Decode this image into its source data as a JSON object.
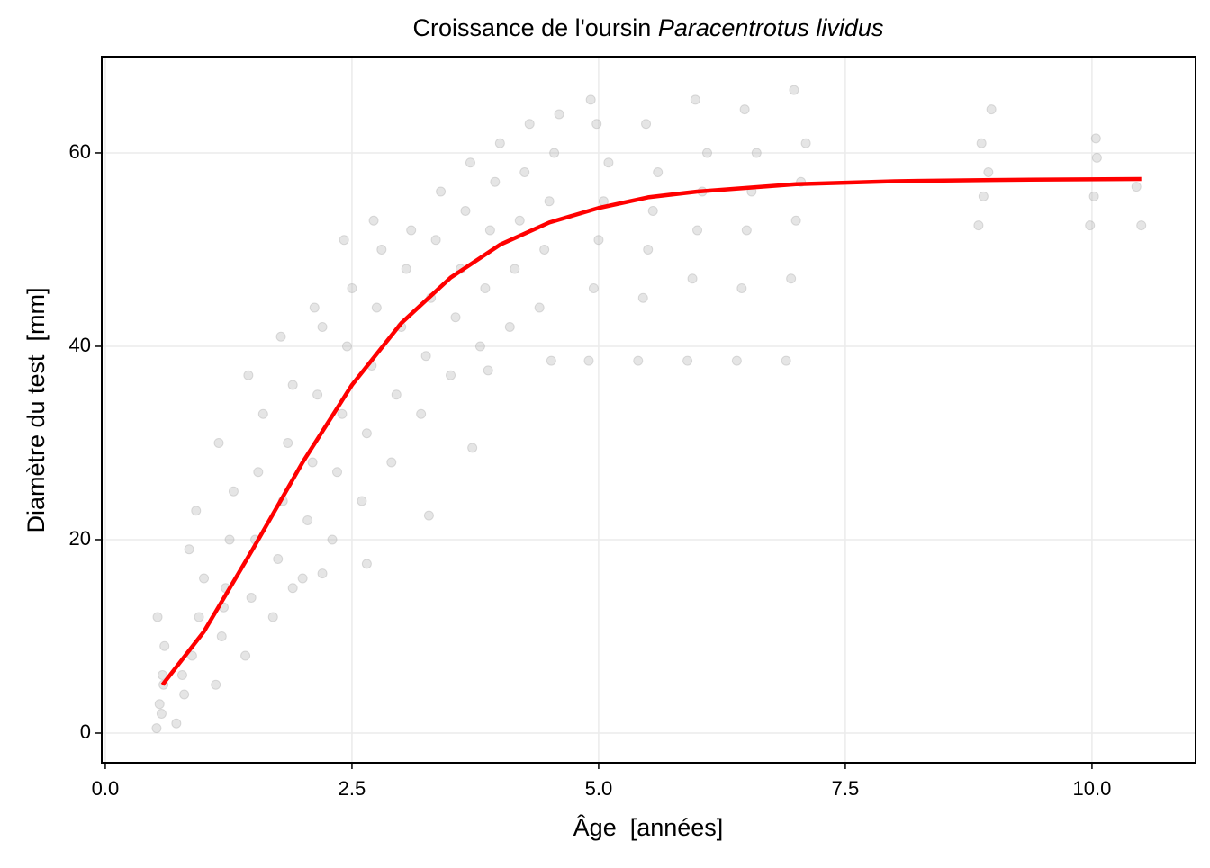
{
  "chart_data": {
    "type": "scatter",
    "title": "Croissance de l'oursin ",
    "title_italic": "Paracentrotus lividus",
    "x_label": "Âge  [années]",
    "y_label": "Diamètre du test  [mm]",
    "xlim": [
      -0.036,
      11.05
    ],
    "ylim": [
      -3.07,
      69.95
    ],
    "xticks": [
      {
        "value": 0,
        "label": "0.0"
      },
      2.5,
      {
        "value": 5,
        "label": "5.0"
      },
      7.5,
      {
        "value": 10,
        "label": "10.0"
      }
    ],
    "yticks": [
      0,
      20,
      40,
      60
    ],
    "grid": true,
    "series": [
      {
        "type": "scatter",
        "color": "#aaaaaa",
        "x": [
          0.52,
          0.55,
          0.58,
          0.6,
          0.53,
          0.57,
          0.59,
          0.72,
          0.8,
          0.88,
          0.95,
          1.0,
          0.85,
          0.92,
          0.78,
          1.12,
          1.18,
          1.22,
          1.26,
          1.3,
          1.15,
          1.2,
          1.42,
          1.48,
          1.52,
          1.55,
          1.6,
          1.45,
          1.7,
          1.75,
          1.8,
          1.85,
          1.9,
          1.78,
          2.0,
          2.05,
          2.1,
          2.15,
          2.2,
          2.12,
          2.3,
          2.35,
          2.4,
          2.45,
          2.5,
          2.42,
          2.6,
          2.65,
          2.7,
          2.75,
          2.8,
          2.72,
          2.9,
          2.95,
          3.0,
          3.05,
          3.1,
          3.2,
          3.25,
          3.3,
          3.35,
          3.4,
          3.28,
          3.5,
          3.55,
          3.6,
          3.65,
          3.7,
          3.72,
          3.8,
          3.85,
          3.9,
          3.95,
          4.0,
          3.88,
          4.1,
          4.15,
          4.2,
          4.25,
          4.3,
          4.4,
          4.45,
          4.5,
          4.55,
          4.6,
          4.52,
          4.9,
          4.95,
          5.0,
          5.05,
          5.1,
          4.98,
          4.92,
          5.4,
          5.45,
          5.5,
          5.55,
          5.6,
          5.48,
          5.9,
          5.95,
          6.0,
          6.05,
          6.1,
          5.98,
          6.4,
          6.45,
          6.5,
          6.55,
          6.6,
          6.48,
          6.9,
          6.95,
          7.0,
          7.05,
          7.1,
          6.98,
          8.85,
          8.9,
          8.95,
          8.88,
          8.98,
          9.98,
          10.02,
          10.05,
          10.04,
          10.5,
          10.45,
          2.65,
          2.2,
          1.9
        ],
        "values": [
          0.5,
          3,
          6,
          9,
          12,
          2,
          5,
          1,
          4,
          8,
          12,
          16,
          19,
          23,
          6,
          5,
          10,
          15,
          20,
          25,
          30,
          13,
          8,
          14,
          20,
          27,
          33,
          37,
          12,
          18,
          24,
          30,
          36,
          41,
          16,
          22,
          28,
          35,
          42,
          44,
          20,
          27,
          33,
          40,
          46,
          51,
          24,
          31,
          38,
          44,
          50,
          53,
          28,
          35,
          42,
          48,
          52,
          33,
          39,
          45,
          51,
          56,
          22.5,
          37,
          43,
          48,
          54,
          59,
          29.5,
          40,
          46,
          52,
          57,
          61,
          37.5,
          42,
          48,
          53,
          58,
          63,
          44,
          50,
          55,
          60,
          64,
          38.5,
          38.5,
          46,
          51,
          55,
          59,
          63,
          65.5,
          38.5,
          45,
          50,
          54,
          58,
          63,
          38.5,
          47,
          52,
          56,
          60,
          65.5,
          38.5,
          46,
          52,
          56,
          60,
          64.5,
          38.5,
          47,
          53,
          57,
          61,
          66.5,
          52.5,
          55.5,
          58,
          61,
          64.5,
          52.5,
          55.5,
          59.5,
          61.5,
          52.5,
          56.5,
          17.5,
          16.5,
          15
        ]
      },
      {
        "type": "line",
        "color": "#ff0000",
        "x": [
          0.58,
          1,
          1.5,
          2,
          2.5,
          3,
          3.5,
          4,
          4.5,
          5,
          5.5,
          6,
          7,
          8,
          9,
          10.5
        ],
        "values": [
          5,
          10.5,
          19.1,
          28,
          36,
          42.4,
          47.1,
          50.5,
          52.8,
          54.3,
          55.4,
          56,
          56.76,
          57.07,
          57.2,
          57.3
        ]
      }
    ]
  }
}
